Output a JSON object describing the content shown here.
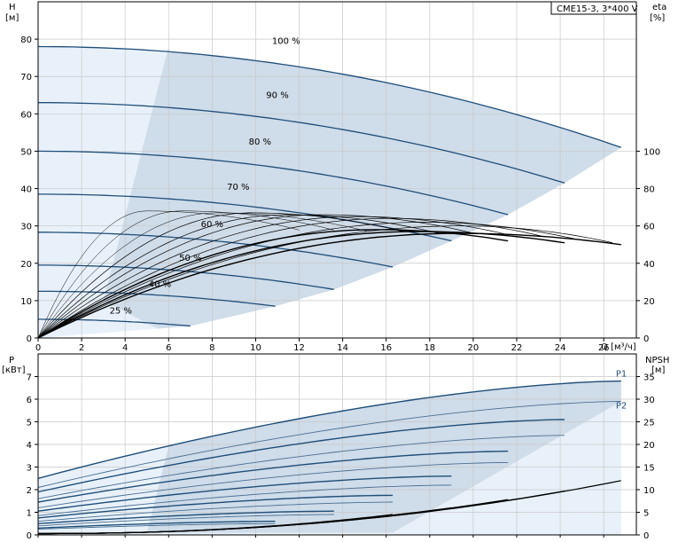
{
  "chart_data": [
    {
      "type": "line",
      "panel": "top",
      "model_label": "CME15-3, 3*400 V",
      "y_left_label": "H",
      "y_left_unit": "[м]",
      "y_right_label": "eta",
      "y_right_unit": "[%]",
      "x_label": "Q [м³/ч]",
      "xlim": [
        0,
        27.5
      ],
      "x_ticks": [
        "0",
        "2",
        "4",
        "6",
        "8",
        "10",
        "12",
        "14",
        "16",
        "18",
        "20",
        "22",
        "24",
        "26"
      ],
      "ylim_left": [
        0,
        90
      ],
      "y_left_ticks": [
        "0",
        "10",
        "20",
        "30",
        "40",
        "50",
        "60",
        "70",
        "80"
      ],
      "ylim_right": [
        0,
        180
      ],
      "y_right_ticks": [
        "0",
        "20",
        "40",
        "60",
        "80",
        "100"
      ],
      "grid": true,
      "head_curves": [
        {
          "label": "100 %",
          "h0": 78,
          "qmax": 26.8,
          "hend": 51,
          "label_q": 11.4,
          "label_h": 78
        },
        {
          "label": "90 %",
          "h0": 63,
          "qmax": 24.2,
          "hend": 41.5,
          "label_q": 11.0,
          "label_h": 63.5
        },
        {
          "label": "80 %",
          "h0": 50,
          "qmax": 21.6,
          "hend": 33,
          "label_q": 10.2,
          "label_h": 51
        },
        {
          "label": "70 %",
          "h0": 38.5,
          "qmax": 19.0,
          "hend": 26,
          "label_q": 9.2,
          "label_h": 39
        },
        {
          "label": "60 %",
          "h0": 28.3,
          "qmax": 16.3,
          "hend": 19,
          "label_q": 8.0,
          "label_h": 29
        },
        {
          "label": "50 %",
          "h0": 19.5,
          "qmax": 13.6,
          "hend": 13,
          "label_q": 7.0,
          "label_h": 20
        },
        {
          "label": "40 %",
          "h0": 12.5,
          "qmax": 10.9,
          "hend": 8.5,
          "label_q": 5.6,
          "label_h": 13
        },
        {
          "label": "25 %",
          "h0": 5,
          "qmax": 7.0,
          "hend": 3.2,
          "label_q": 3.8,
          "label_h": 5.8
        }
      ],
      "efficiency_curves_peak_percent": [
        68,
        68,
        67,
        67,
        66,
        66,
        65,
        64,
        62,
        60
      ]
    },
    {
      "type": "line",
      "panel": "bottom",
      "y_left_label": "P",
      "y_left_unit": "[кВт]",
      "y_right_label": "NPSH",
      "y_right_unit": "[м]",
      "xlim": [
        0,
        27.5
      ],
      "ylim_left": [
        0,
        8
      ],
      "y_left_ticks": [
        "0",
        "1",
        "2",
        "3",
        "4",
        "5",
        "6",
        "7"
      ],
      "ylim_right": [
        0,
        40
      ],
      "y_right_ticks": [
        "0",
        "5",
        "10",
        "15",
        "20",
        "25",
        "30",
        "35"
      ],
      "grid": true,
      "series_labels": [
        "P1",
        "P2"
      ],
      "p1_curves": [
        {
          "p0": 2.5,
          "qmax": 26.8,
          "pend": 6.8
        },
        {
          "p0": 1.9,
          "qmax": 24.2,
          "pend": 5.1
        },
        {
          "p0": 1.45,
          "qmax": 21.6,
          "pend": 3.7
        },
        {
          "p0": 1.05,
          "qmax": 19.0,
          "pend": 2.6
        },
        {
          "p0": 0.75,
          "qmax": 16.3,
          "pend": 1.75
        },
        {
          "p0": 0.5,
          "qmax": 13.6,
          "pend": 1.05
        },
        {
          "p0": 0.3,
          "qmax": 10.9,
          "pend": 0.6
        }
      ],
      "p2_curves": [
        {
          "p0": 2.1,
          "qmax": 26.8,
          "pend": 5.9
        },
        {
          "p0": 1.6,
          "qmax": 24.2,
          "pend": 4.4
        },
        {
          "p0": 1.2,
          "qmax": 21.6,
          "pend": 3.2
        },
        {
          "p0": 0.85,
          "qmax": 19.0,
          "pend": 2.2
        },
        {
          "p0": 0.6,
          "qmax": 16.3,
          "pend": 1.45
        },
        {
          "p0": 0.4,
          "qmax": 13.6,
          "pend": 0.9
        },
        {
          "p0": 0.25,
          "qmax": 10.9,
          "pend": 0.5
        }
      ],
      "npsh_curves": [
        {
          "qmax": 26.8,
          "nend": 12
        },
        {
          "qmax": 24.2,
          "nend": 9.7
        },
        {
          "qmax": 21.6,
          "nend": 7.8
        },
        {
          "qmax": 19.0,
          "nend": 6.0
        },
        {
          "qmax": 16.3,
          "nend": 4.5
        }
      ]
    }
  ]
}
